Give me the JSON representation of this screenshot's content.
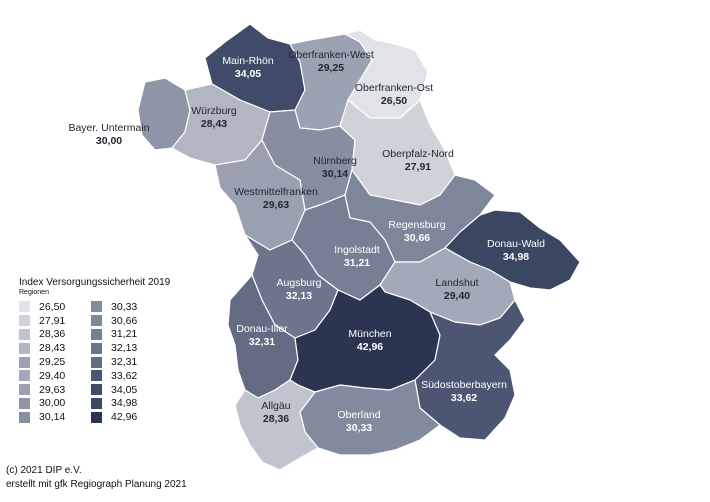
{
  "map": {
    "regions": [
      {
        "name": "Main-Rhön",
        "value": "34,05",
        "color": "#3f4b68",
        "tone": "dark"
      },
      {
        "name": "Oberfranken-West",
        "value": "29,25",
        "color": "#9ba2b2",
        "tone": "light"
      },
      {
        "name": "Oberfranken-Ost",
        "value": "26,50",
        "color": "#e1e3e8",
        "tone": "light"
      },
      {
        "name": "Würzburg",
        "value": "28,43",
        "color": "#b1b6c2",
        "tone": "light"
      },
      {
        "name": "Bayer. Untermain",
        "value": "30,00",
        "color": "#8d95a6",
        "tone": "light"
      },
      {
        "name": "Nürnberg",
        "value": "30,14",
        "color": "#868ea0",
        "tone": "light"
      },
      {
        "name": "Oberpfalz-Nord",
        "value": "27,91",
        "color": "#cfd2d9",
        "tone": "light"
      },
      {
        "name": "Westmittelfranken",
        "value": "29,63",
        "color": "#9aa0b0",
        "tone": "light"
      },
      {
        "name": "Regensburg",
        "value": "30,66",
        "color": "#7e869a",
        "tone": "dark"
      },
      {
        "name": "Ingolstadt",
        "value": "31,21",
        "color": "#767f94",
        "tone": "dark"
      },
      {
        "name": "Donau-Wald",
        "value": "34,98",
        "color": "#3b4663",
        "tone": "dark"
      },
      {
        "name": "Landshut",
        "value": "29,40",
        "color": "#a3a9b8",
        "tone": "light"
      },
      {
        "name": "Augsburg",
        "value": "32,13",
        "color": "#6c758b",
        "tone": "dark"
      },
      {
        "name": "Donau-Iller",
        "value": "32,31",
        "color": "#636c83",
        "tone": "dark"
      },
      {
        "name": "München",
        "value": "42,96",
        "color": "#2b3552",
        "tone": "dark"
      },
      {
        "name": "Südostoberbayern",
        "value": "33,62",
        "color": "#4c5673",
        "tone": "dark"
      },
      {
        "name": "Allgäu",
        "value": "28,36",
        "color": "#c0c4ce",
        "tone": "light"
      },
      {
        "name": "Oberland",
        "value": "30,33",
        "color": "#828a9d",
        "tone": "dark"
      }
    ]
  },
  "legend": {
    "title": "Index Versorgungssicherheit 2019",
    "subtitle": "Regionen",
    "items": [
      {
        "label": "26,50",
        "color": "#e1e3e8"
      },
      {
        "label": "30,33",
        "color": "#828a9d"
      },
      {
        "label": "27,91",
        "color": "#cfd2d9"
      },
      {
        "label": "30,66",
        "color": "#7e869a"
      },
      {
        "label": "28,36",
        "color": "#c0c4ce"
      },
      {
        "label": "31,21",
        "color": "#767f94"
      },
      {
        "label": "28,43",
        "color": "#b1b6c2"
      },
      {
        "label": "32,13",
        "color": "#6c758b"
      },
      {
        "label": "29,25",
        "color": "#9ba2b2"
      },
      {
        "label": "32,31",
        "color": "#636c83"
      },
      {
        "label": "29,40",
        "color": "#a3a9b8"
      },
      {
        "label": "33,62",
        "color": "#4c5673"
      },
      {
        "label": "29,63",
        "color": "#9aa0b0"
      },
      {
        "label": "34,05",
        "color": "#3f4b68"
      },
      {
        "label": "30,00",
        "color": "#8d95a6"
      },
      {
        "label": "34,98",
        "color": "#3b4663"
      },
      {
        "label": "30,14",
        "color": "#868ea0"
      },
      {
        "label": "42,96",
        "color": "#2b3552"
      }
    ]
  },
  "credit": {
    "line1": "(c) 2021 DIP e.V.",
    "line2": "erstellt mit gfk Regiograph Planung 2021"
  }
}
